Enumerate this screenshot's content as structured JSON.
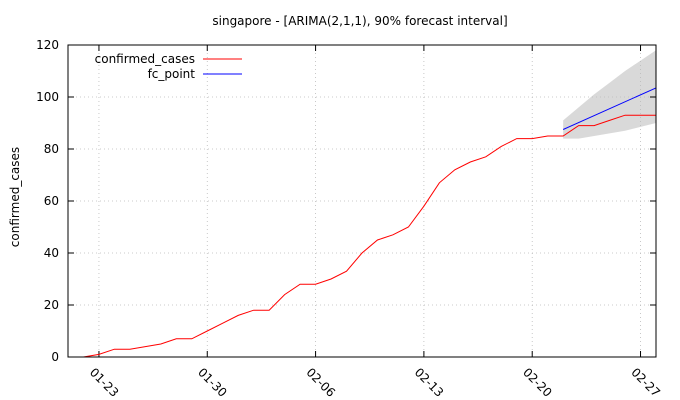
{
  "chart_data": {
    "type": "line",
    "title": "singapore -  [ARIMA(2,1,1), 90% forecast interval]",
    "xlabel": "",
    "ylabel": "confirmed_cases",
    "ylim": [
      0,
      120
    ],
    "yticks": [
      0,
      20,
      40,
      60,
      80,
      100,
      120
    ],
    "xlim": [
      "2020-01-21",
      "2020-02-28"
    ],
    "xticks": [
      "01-23",
      "01-30",
      "02-06",
      "02-13",
      "02-20",
      "02-27"
    ],
    "grid": true,
    "legend_position": "top-left",
    "colors": {
      "confirmed_cases": "#ff0000",
      "fc_point": "#0000ff",
      "interval": "#d9d9d9"
    },
    "series": [
      {
        "name": "confirmed_cases",
        "x": [
          "2020-01-22",
          "2020-01-23",
          "2020-01-24",
          "2020-01-25",
          "2020-01-26",
          "2020-01-27",
          "2020-01-28",
          "2020-01-29",
          "2020-01-30",
          "2020-01-31",
          "2020-02-01",
          "2020-02-02",
          "2020-02-03",
          "2020-02-04",
          "2020-02-05",
          "2020-02-06",
          "2020-02-07",
          "2020-02-08",
          "2020-02-09",
          "2020-02-10",
          "2020-02-11",
          "2020-02-12",
          "2020-02-13",
          "2020-02-14",
          "2020-02-15",
          "2020-02-16",
          "2020-02-17",
          "2020-02-18",
          "2020-02-19",
          "2020-02-20",
          "2020-02-21",
          "2020-02-22",
          "2020-02-23",
          "2020-02-24",
          "2020-02-25",
          "2020-02-26",
          "2020-02-27",
          "2020-02-28"
        ],
        "values": [
          0,
          1,
          3,
          3,
          4,
          5,
          7,
          7,
          10,
          13,
          16,
          18,
          18,
          24,
          28,
          28,
          30,
          33,
          40,
          45,
          47,
          50,
          58,
          67,
          72,
          75,
          77,
          81,
          84,
          84,
          85,
          85,
          89,
          89,
          91,
          93,
          93,
          93
        ]
      },
      {
        "name": "fc_point",
        "x": [
          "2020-02-22",
          "2020-02-28"
        ],
        "values": [
          87.5,
          103.5
        ]
      }
    ],
    "interval": {
      "x": [
        "2020-02-22",
        "2020-02-23",
        "2020-02-24",
        "2020-02-25",
        "2020-02-26",
        "2020-02-27",
        "2020-02-28"
      ],
      "lower": [
        84,
        84,
        85,
        86,
        87,
        88.5,
        90
      ],
      "upper": [
        91,
        96,
        101,
        105.5,
        110,
        114,
        118
      ]
    }
  }
}
